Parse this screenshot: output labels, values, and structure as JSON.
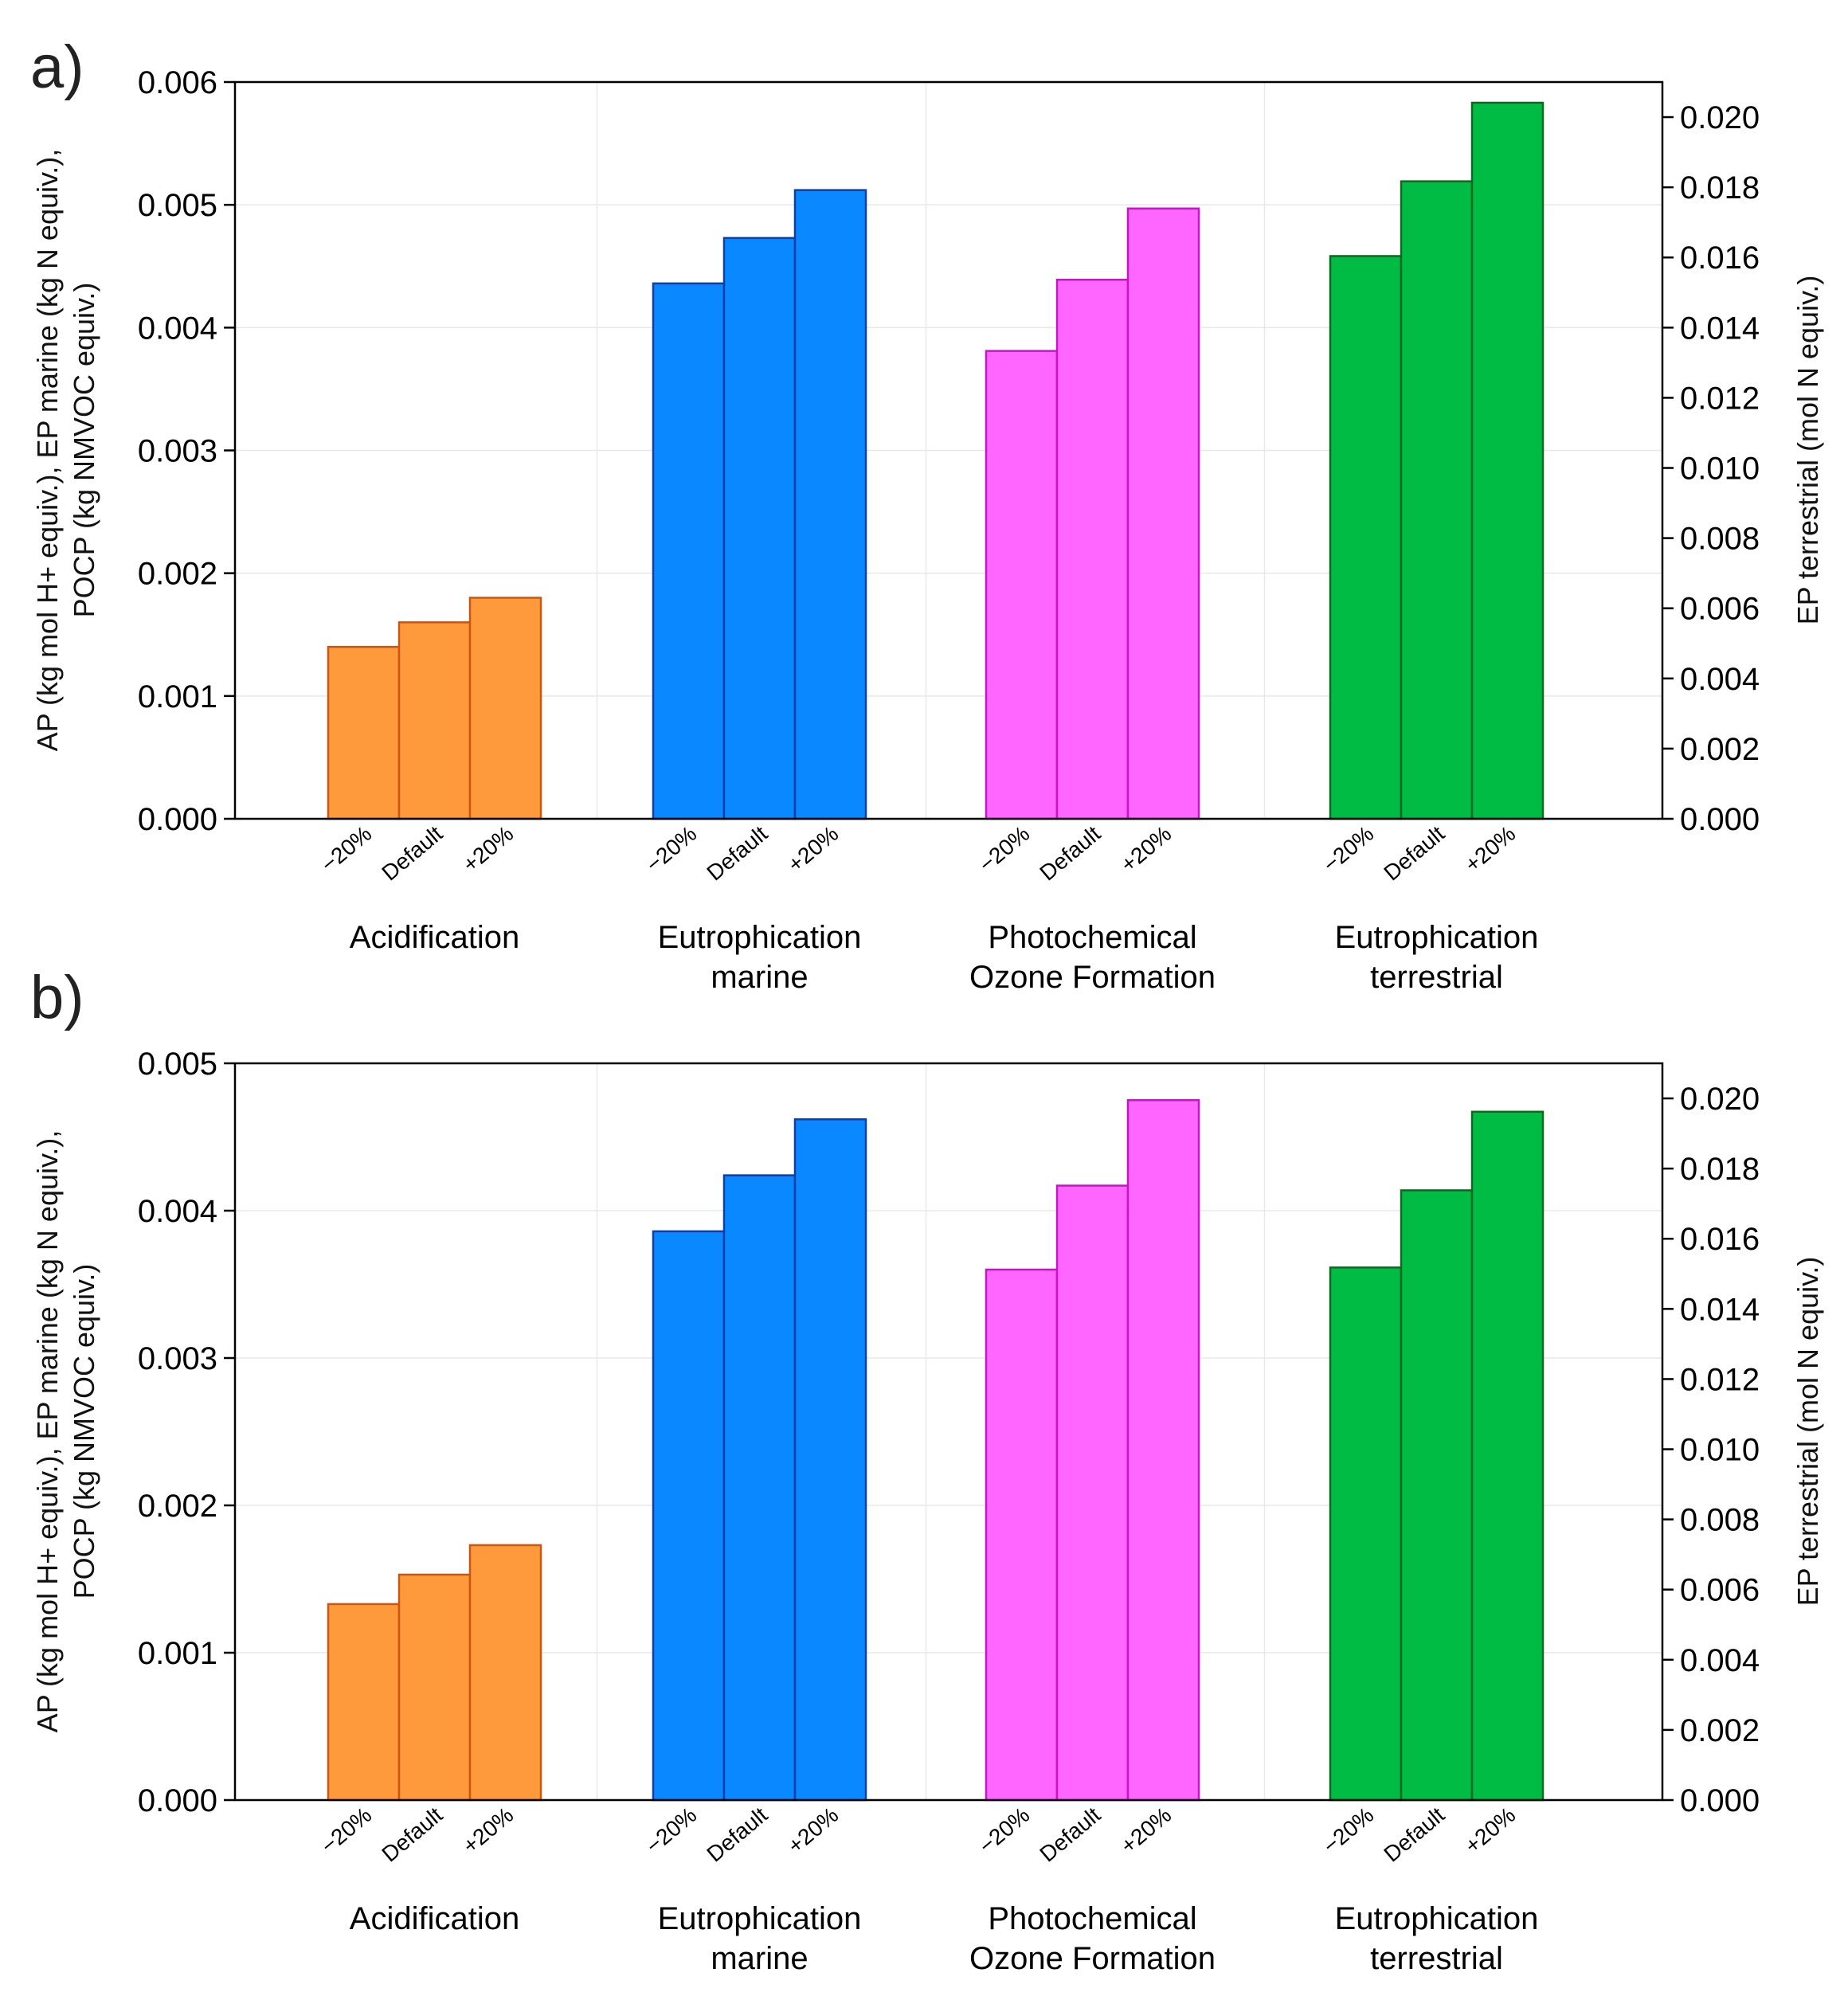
{
  "chart_data": [
    {
      "type": "bar",
      "panel_label": "a)",
      "left_axis": {
        "title_lines": [
          "AP (kg mol H+ equiv.), EP marine (kg N equiv.),",
          "POCP (kg NMVOC equiv.)"
        ],
        "ylim": [
          0,
          0.006
        ],
        "ticks": [
          "0.000",
          "0.001",
          "0.002",
          "0.003",
          "0.004",
          "0.005",
          "0.006"
        ]
      },
      "right_axis": {
        "title": "EP terrestrial (mol N equiv.)",
        "ylim": [
          0,
          0.021
        ],
        "ticks": [
          "0.000",
          "0.002",
          "0.004",
          "0.006",
          "0.008",
          "0.010",
          "0.012",
          "0.014",
          "0.016",
          "0.018",
          "0.020"
        ]
      },
      "categories": [
        "−20%",
        "Default",
        "+20%"
      ],
      "groups": [
        {
          "label_lines": [
            "Acidification"
          ],
          "axis": "left",
          "color": "#ff9a3c",
          "edge": "#cc5510",
          "values": [
            0.0014,
            0.0016,
            0.0018
          ]
        },
        {
          "label_lines": [
            "Eutrophication",
            "marine"
          ],
          "axis": "left",
          "color": "#0a88ff",
          "edge": "#0d3fa8",
          "values": [
            0.00436,
            0.00473,
            0.00512
          ]
        },
        {
          "label_lines": [
            "Photochemical",
            "Ozone Formation"
          ],
          "axis": "left",
          "color": "#ff66ff",
          "edge": "#c814c8",
          "values": [
            0.00381,
            0.00439,
            0.00497
          ]
        },
        {
          "label_lines": [
            "Eutrophication",
            "terrestrial"
          ],
          "axis": "right",
          "color": "#00bb44",
          "edge": "#0a6b1f",
          "values": [
            0.01604,
            0.01817,
            0.02041
          ]
        }
      ]
    },
    {
      "type": "bar",
      "panel_label": "b)",
      "left_axis": {
        "title_lines": [
          "AP (kg mol H+ equiv.), EP marine (kg N equiv.),",
          "POCP (kg NMVOC equiv.)"
        ],
        "ylim": [
          0,
          0.005
        ],
        "ticks": [
          "0.000",
          "0.001",
          "0.002",
          "0.003",
          "0.004",
          "0.005"
        ]
      },
      "right_axis": {
        "title": "EP terrestrial (mol N equiv.)",
        "ylim": [
          0,
          0.021
        ],
        "ticks": [
          "0.000",
          "0.002",
          "0.004",
          "0.006",
          "0.008",
          "0.010",
          "0.012",
          "0.014",
          "0.016",
          "0.018",
          "0.020"
        ]
      },
      "categories": [
        "−20%",
        "Default",
        "+20%"
      ],
      "groups": [
        {
          "label_lines": [
            "Acidification"
          ],
          "axis": "left",
          "color": "#ff9a3c",
          "edge": "#cc5510",
          "values": [
            0.00133,
            0.00153,
            0.00173
          ]
        },
        {
          "label_lines": [
            "Eutrophication",
            "marine"
          ],
          "axis": "left",
          "color": "#0a88ff",
          "edge": "#0d3fa8",
          "values": [
            0.00386,
            0.00424,
            0.00462
          ]
        },
        {
          "label_lines": [
            "Photochemical",
            "Ozone Formation"
          ],
          "axis": "left",
          "color": "#ff66ff",
          "edge": "#c814c8",
          "values": [
            0.0036,
            0.00417,
            0.00475
          ]
        },
        {
          "label_lines": [
            "Eutrophication",
            "terrestrial"
          ],
          "axis": "right",
          "color": "#00bb44",
          "edge": "#0a6b1f",
          "values": [
            0.01518,
            0.01738,
            0.01962
          ]
        }
      ]
    }
  ]
}
